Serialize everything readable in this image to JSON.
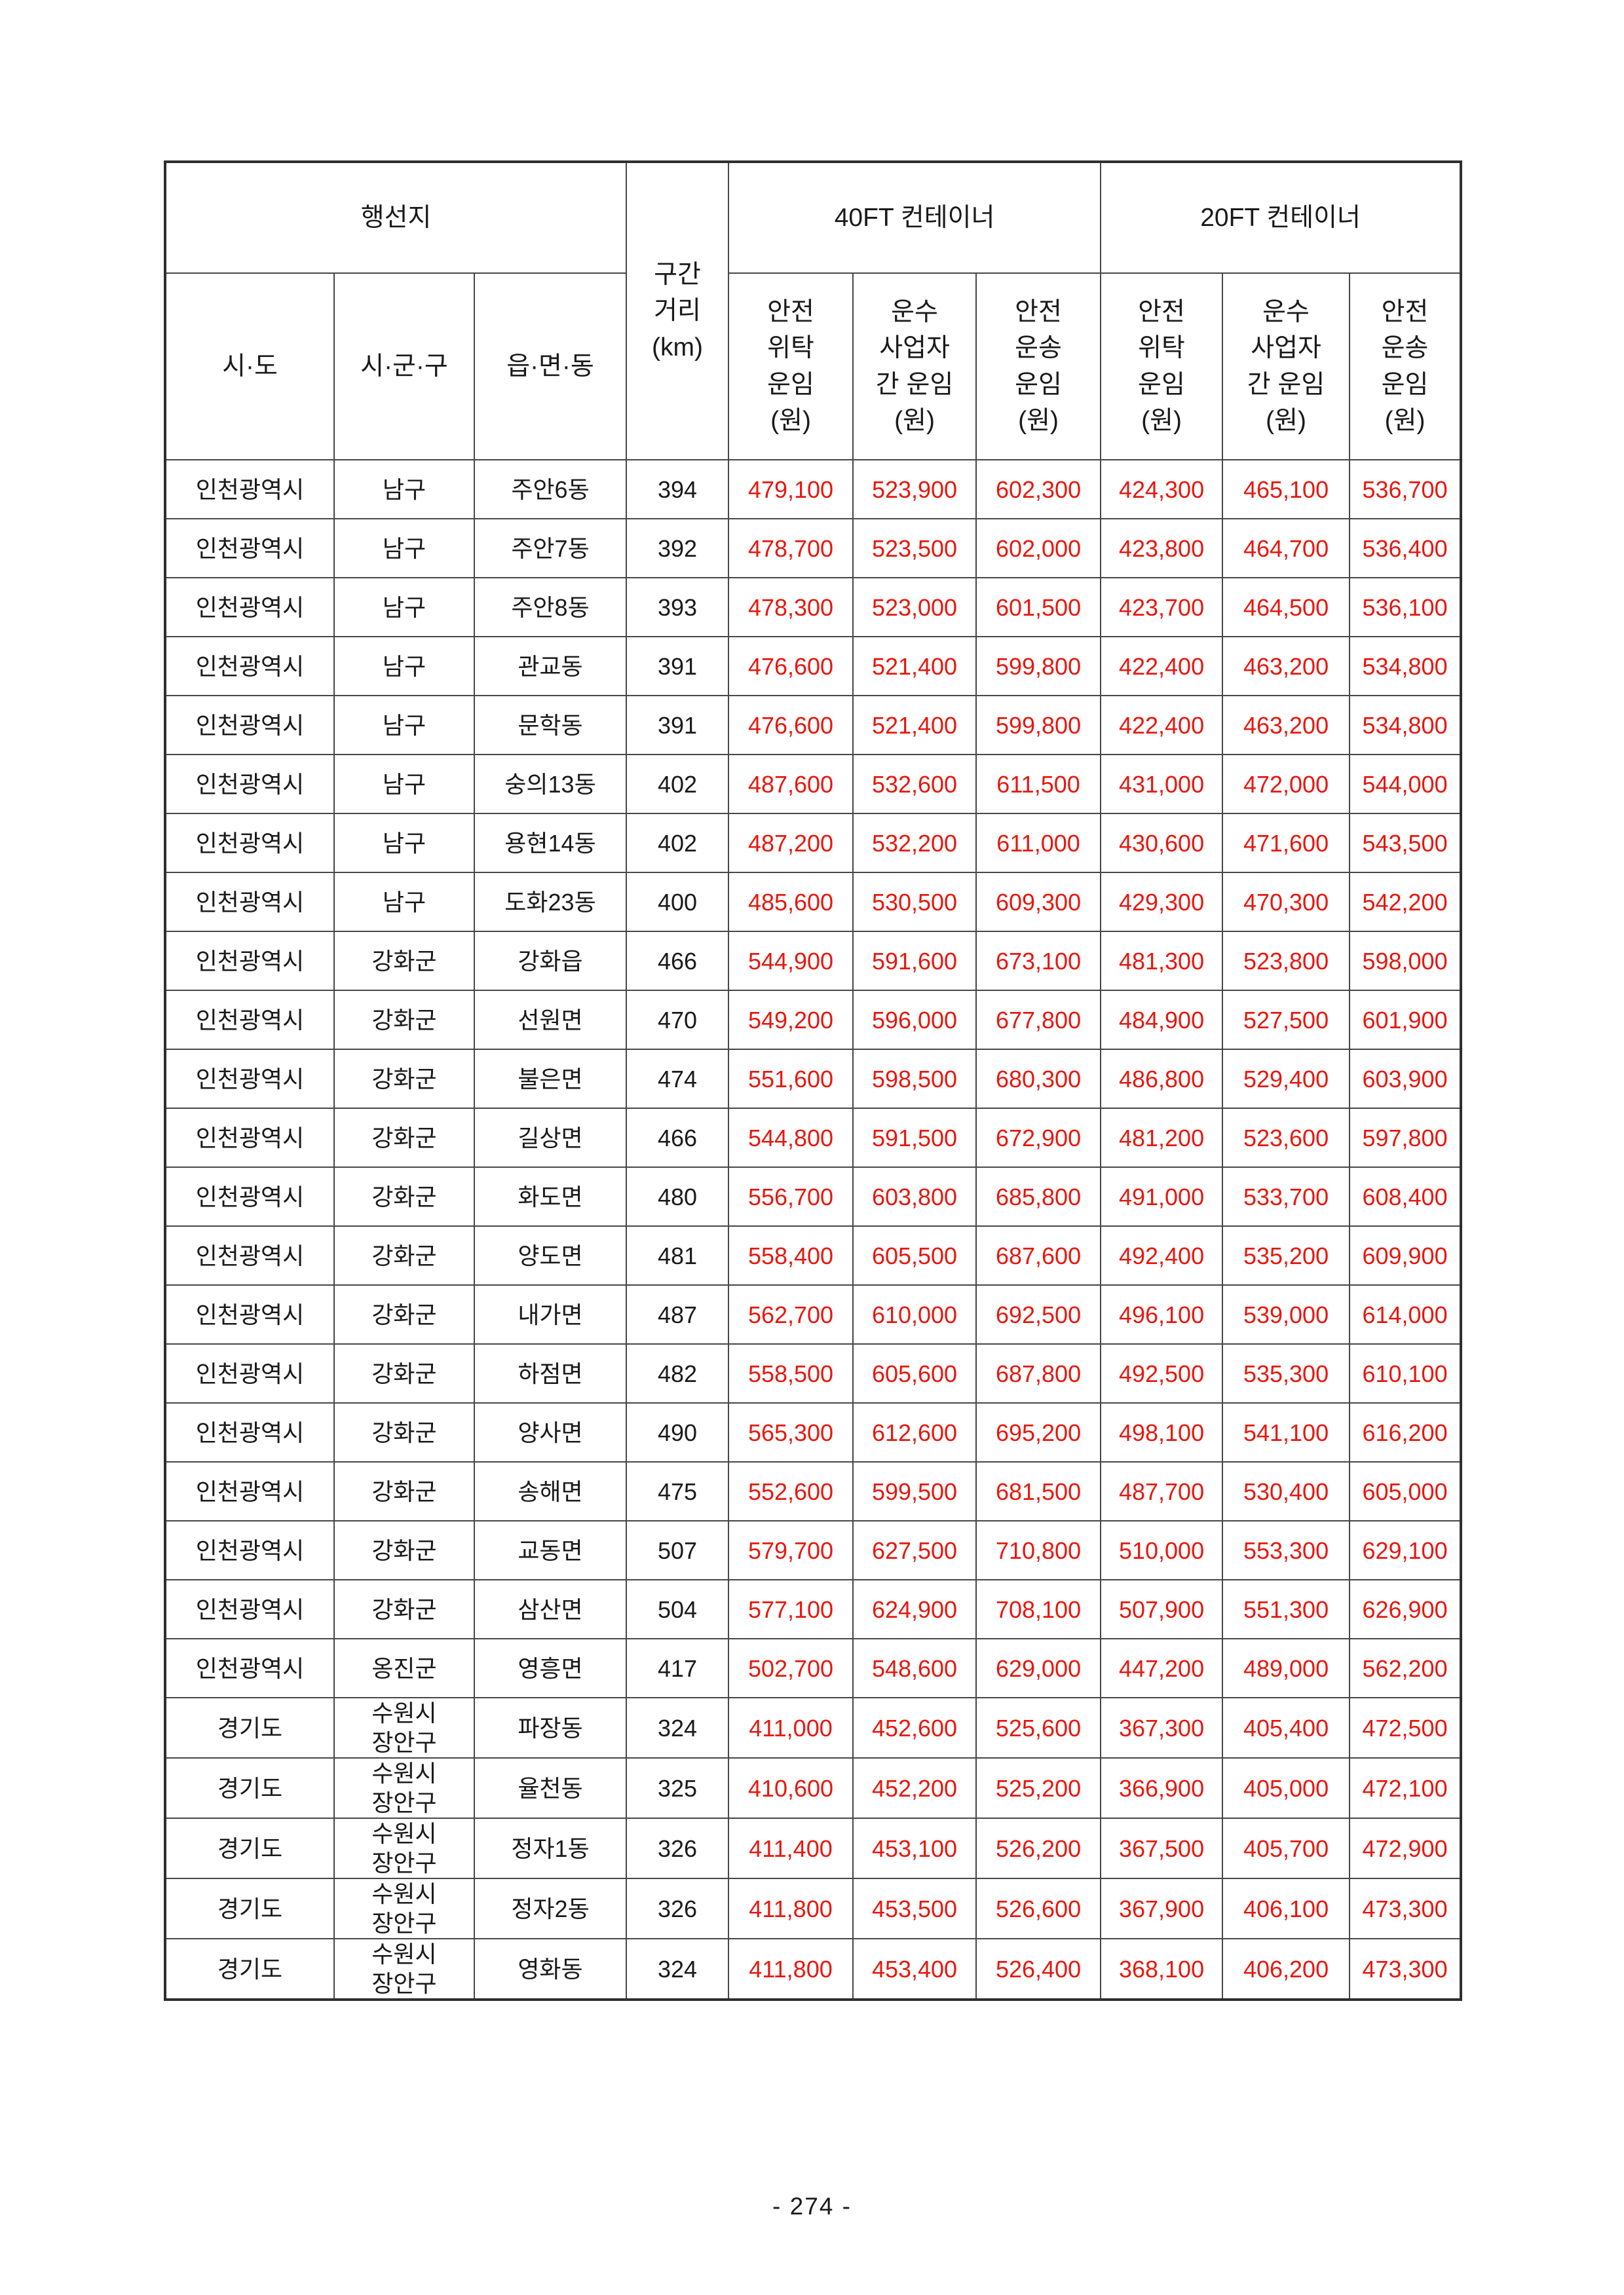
{
  "page": {
    "number_label": "- 274 -"
  },
  "table": {
    "header": {
      "destination": "행선지",
      "sido": "시·도",
      "sigungu": "시·군·구",
      "eupmyeondong": "읍·면·동",
      "distance": "구간\n거리\n(km)",
      "group_40ft": "40FT 컨테이너",
      "group_20ft": "20FT 컨테이너",
      "fare_cols": [
        "안전\n위탁\n운임\n(원)",
        "운수\n사업자\n간 운임\n(원)",
        "안전\n운송\n운임\n(원)",
        "안전\n위탁\n운임\n(원)",
        "운수\n사업자\n간 운임\n(원)",
        "안전\n운송\n운임\n(원)"
      ]
    },
    "rows": [
      {
        "sido": "인천광역시",
        "sigungu": "남구",
        "dong": "주안6동",
        "km": "394",
        "fares": [
          "479,100",
          "523,900",
          "602,300",
          "424,300",
          "465,100",
          "536,700"
        ]
      },
      {
        "sido": "인천광역시",
        "sigungu": "남구",
        "dong": "주안7동",
        "km": "392",
        "fares": [
          "478,700",
          "523,500",
          "602,000",
          "423,800",
          "464,700",
          "536,400"
        ]
      },
      {
        "sido": "인천광역시",
        "sigungu": "남구",
        "dong": "주안8동",
        "km": "393",
        "fares": [
          "478,300",
          "523,000",
          "601,500",
          "423,700",
          "464,500",
          "536,100"
        ]
      },
      {
        "sido": "인천광역시",
        "sigungu": "남구",
        "dong": "관교동",
        "km": "391",
        "fares": [
          "476,600",
          "521,400",
          "599,800",
          "422,400",
          "463,200",
          "534,800"
        ]
      },
      {
        "sido": "인천광역시",
        "sigungu": "남구",
        "dong": "문학동",
        "km": "391",
        "fares": [
          "476,600",
          "521,400",
          "599,800",
          "422,400",
          "463,200",
          "534,800"
        ]
      },
      {
        "sido": "인천광역시",
        "sigungu": "남구",
        "dong": "숭의13동",
        "km": "402",
        "fares": [
          "487,600",
          "532,600",
          "611,500",
          "431,000",
          "472,000",
          "544,000"
        ]
      },
      {
        "sido": "인천광역시",
        "sigungu": "남구",
        "dong": "용현14동",
        "km": "402",
        "fares": [
          "487,200",
          "532,200",
          "611,000",
          "430,600",
          "471,600",
          "543,500"
        ]
      },
      {
        "sido": "인천광역시",
        "sigungu": "남구",
        "dong": "도화23동",
        "km": "400",
        "fares": [
          "485,600",
          "530,500",
          "609,300",
          "429,300",
          "470,300",
          "542,200"
        ]
      },
      {
        "sido": "인천광역시",
        "sigungu": "강화군",
        "dong": "강화읍",
        "km": "466",
        "fares": [
          "544,900",
          "591,600",
          "673,100",
          "481,300",
          "523,800",
          "598,000"
        ]
      },
      {
        "sido": "인천광역시",
        "sigungu": "강화군",
        "dong": "선원면",
        "km": "470",
        "fares": [
          "549,200",
          "596,000",
          "677,800",
          "484,900",
          "527,500",
          "601,900"
        ]
      },
      {
        "sido": "인천광역시",
        "sigungu": "강화군",
        "dong": "불은면",
        "km": "474",
        "fares": [
          "551,600",
          "598,500",
          "680,300",
          "486,800",
          "529,400",
          "603,900"
        ]
      },
      {
        "sido": "인천광역시",
        "sigungu": "강화군",
        "dong": "길상면",
        "km": "466",
        "fares": [
          "544,800",
          "591,500",
          "672,900",
          "481,200",
          "523,600",
          "597,800"
        ]
      },
      {
        "sido": "인천광역시",
        "sigungu": "강화군",
        "dong": "화도면",
        "km": "480",
        "fares": [
          "556,700",
          "603,800",
          "685,800",
          "491,000",
          "533,700",
          "608,400"
        ]
      },
      {
        "sido": "인천광역시",
        "sigungu": "강화군",
        "dong": "양도면",
        "km": "481",
        "fares": [
          "558,400",
          "605,500",
          "687,600",
          "492,400",
          "535,200",
          "609,900"
        ]
      },
      {
        "sido": "인천광역시",
        "sigungu": "강화군",
        "dong": "내가면",
        "km": "487",
        "fares": [
          "562,700",
          "610,000",
          "692,500",
          "496,100",
          "539,000",
          "614,000"
        ]
      },
      {
        "sido": "인천광역시",
        "sigungu": "강화군",
        "dong": "하점면",
        "km": "482",
        "fares": [
          "558,500",
          "605,600",
          "687,800",
          "492,500",
          "535,300",
          "610,100"
        ]
      },
      {
        "sido": "인천광역시",
        "sigungu": "강화군",
        "dong": "양사면",
        "km": "490",
        "fares": [
          "565,300",
          "612,600",
          "695,200",
          "498,100",
          "541,100",
          "616,200"
        ]
      },
      {
        "sido": "인천광역시",
        "sigungu": "강화군",
        "dong": "송해면",
        "km": "475",
        "fares": [
          "552,600",
          "599,500",
          "681,500",
          "487,700",
          "530,400",
          "605,000"
        ]
      },
      {
        "sido": "인천광역시",
        "sigungu": "강화군",
        "dong": "교동면",
        "km": "507",
        "fares": [
          "579,700",
          "627,500",
          "710,800",
          "510,000",
          "553,300",
          "629,100"
        ]
      },
      {
        "sido": "인천광역시",
        "sigungu": "강화군",
        "dong": "삼산면",
        "km": "504",
        "fares": [
          "577,100",
          "624,900",
          "708,100",
          "507,900",
          "551,300",
          "626,900"
        ]
      },
      {
        "sido": "인천광역시",
        "sigungu": "옹진군",
        "dong": "영흥면",
        "km": "417",
        "fares": [
          "502,700",
          "548,600",
          "629,000",
          "447,200",
          "489,000",
          "562,200"
        ]
      },
      {
        "sido": "경기도",
        "sigungu": "수원시\n장안구",
        "dong": "파장동",
        "km": "324",
        "fares": [
          "411,000",
          "452,600",
          "525,600",
          "367,300",
          "405,400",
          "472,500"
        ]
      },
      {
        "sido": "경기도",
        "sigungu": "수원시\n장안구",
        "dong": "율천동",
        "km": "325",
        "fares": [
          "410,600",
          "452,200",
          "525,200",
          "366,900",
          "405,000",
          "472,100"
        ]
      },
      {
        "sido": "경기도",
        "sigungu": "수원시\n장안구",
        "dong": "정자1동",
        "km": "326",
        "fares": [
          "411,400",
          "453,100",
          "526,200",
          "367,500",
          "405,700",
          "472,900"
        ]
      },
      {
        "sido": "경기도",
        "sigungu": "수원시\n장안구",
        "dong": "정자2동",
        "km": "326",
        "fares": [
          "411,800",
          "453,500",
          "526,600",
          "367,900",
          "406,100",
          "473,300"
        ]
      },
      {
        "sido": "경기도",
        "sigungu": "수원시\n장안구",
        "dong": "영화동",
        "km": "324",
        "fares": [
          "411,800",
          "453,400",
          "526,400",
          "368,100",
          "406,200",
          "473,300"
        ]
      }
    ]
  }
}
